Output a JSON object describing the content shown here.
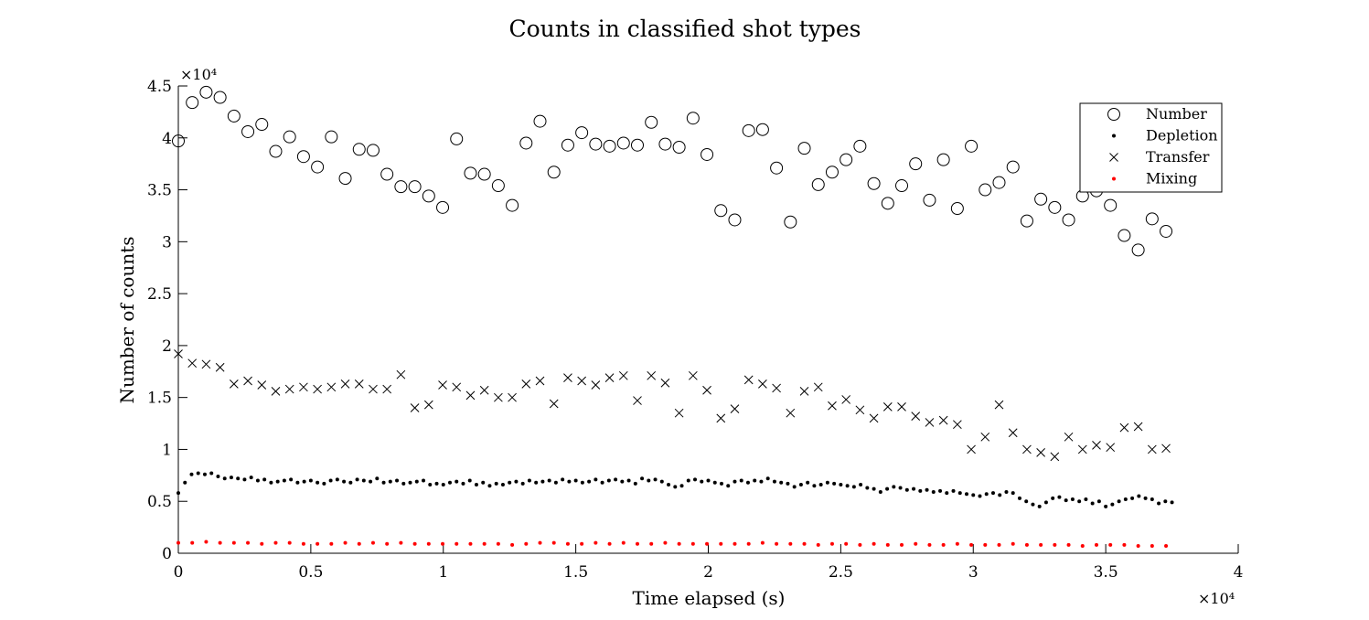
{
  "chart_data": {
    "type": "scatter",
    "title": "Counts in classified shot types",
    "xlabel": "Time elapsed (s)",
    "ylabel": "Number of counts",
    "x_multiplier_label": "×10⁴",
    "y_multiplier_label": "×10⁴",
    "xlim": [
      0,
      40000
    ],
    "ylim": [
      0,
      45000
    ],
    "x_ticks": [
      0,
      5000,
      10000,
      15000,
      20000,
      25000,
      30000,
      35000,
      40000
    ],
    "x_tick_labels": [
      "0",
      "0.5",
      "1",
      "1.5",
      "2",
      "2.5",
      "3",
      "3.5",
      "4"
    ],
    "y_ticks": [
      0,
      5000,
      10000,
      15000,
      20000,
      25000,
      30000,
      35000,
      40000,
      45000
    ],
    "y_tick_labels": [
      "0",
      "0.5",
      "1",
      "1.5",
      "2",
      "2.5",
      "3",
      "3.5",
      "4",
      "4.5"
    ],
    "grid": false,
    "legend_position": "top-right",
    "series": [
      {
        "name": "Number",
        "marker": "open-circle",
        "color": "#000000",
        "x": [
          0,
          525,
          1050,
          1575,
          2100,
          2625,
          3150,
          3675,
          4200,
          4725,
          5250,
          5775,
          6300,
          6825,
          7350,
          7875,
          8400,
          8925,
          9450,
          9975,
          10500,
          11025,
          11550,
          12075,
          12600,
          13125,
          13650,
          14175,
          14700,
          15225,
          15750,
          16275,
          16800,
          17325,
          17850,
          18375,
          18900,
          19425,
          19950,
          20475,
          21000,
          21525,
          22050,
          22575,
          23100,
          23625,
          24150,
          24675,
          25200,
          25725,
          26250,
          26775,
          27300,
          27825,
          28350,
          28875,
          29400,
          29925,
          30450,
          30975,
          31500,
          32025,
          32550,
          33075,
          33600,
          34125,
          34650,
          35175,
          35700,
          36225,
          36750,
          37275
        ],
        "y": [
          39700,
          43400,
          44400,
          43900,
          42100,
          40600,
          41300,
          38700,
          40100,
          38200,
          37200,
          40100,
          36100,
          38900,
          38800,
          36500,
          35300,
          35300,
          34400,
          33300,
          39900,
          36600,
          36500,
          35400,
          33500,
          39500,
          41600,
          36700,
          39300,
          40500,
          39400,
          39200,
          39500,
          39300,
          41500,
          39400,
          39100,
          41900,
          38400,
          33000,
          32100,
          40700,
          40800,
          37100,
          31900,
          39000,
          35500,
          36700,
          37900,
          39200,
          35600,
          33700,
          35400,
          37500,
          34000,
          37900,
          33200,
          39200,
          35000,
          35700,
          37200,
          32000,
          34100,
          33300,
          32100,
          34400,
          34900,
          33500,
          30600,
          29200,
          32200,
          31000
        ]
      },
      {
        "name": "Depletion",
        "marker": "dot",
        "color": "#000000",
        "x": [
          0,
          250,
          500,
          750,
          1000,
          1250,
          1500,
          1750,
          2000,
          2250,
          2500,
          2750,
          3000,
          3250,
          3500,
          3750,
          4000,
          4250,
          4500,
          4750,
          5000,
          5250,
          5500,
          5750,
          6000,
          6250,
          6500,
          6750,
          7000,
          7250,
          7500,
          7750,
          8000,
          8250,
          8500,
          8750,
          9000,
          9250,
          9500,
          9750,
          10000,
          10250,
          10500,
          10750,
          11000,
          11250,
          11500,
          11750,
          12000,
          12250,
          12500,
          12750,
          13000,
          13250,
          13500,
          13750,
          14000,
          14250,
          14500,
          14750,
          15000,
          15250,
          15500,
          15750,
          16000,
          16250,
          16500,
          16750,
          17000,
          17250,
          17500,
          17750,
          18000,
          18250,
          18500,
          18750,
          19000,
          19250,
          19500,
          19750,
          20000,
          20250,
          20500,
          20750,
          21000,
          21250,
          21500,
          21750,
          22000,
          22250,
          22500,
          22750,
          23000,
          23250,
          23500,
          23750,
          24000,
          24250,
          24500,
          24750,
          25000,
          25250,
          25500,
          25750,
          26000,
          26250,
          26500,
          26750,
          27000,
          27250,
          27500,
          27750,
          28000,
          28250,
          28500,
          28750,
          29000,
          29250,
          29500,
          29750,
          30000,
          30250,
          30500,
          30750,
          31000,
          31250,
          31500,
          31750,
          32000,
          32250,
          32500,
          32750,
          33000,
          33250,
          33500,
          33750,
          34000,
          34250,
          34500,
          34750,
          35000,
          35250,
          35500,
          35750,
          36000,
          36250,
          36500,
          36750,
          37000,
          37250,
          37500
        ],
        "y": [
          5800,
          6800,
          7600,
          7700,
          7600,
          7700,
          7400,
          7200,
          7300,
          7200,
          7100,
          7300,
          7000,
          7100,
          6800,
          6900,
          7000,
          7100,
          6800,
          6900,
          7000,
          6800,
          6700,
          7000,
          7100,
          6900,
          6800,
          7100,
          7000,
          6900,
          7200,
          6800,
          6900,
          7000,
          6700,
          6800,
          6900,
          7000,
          6600,
          6700,
          6600,
          6800,
          6900,
          6700,
          7000,
          6600,
          6800,
          6500,
          6700,
          6600,
          6800,
          6900,
          6700,
          7000,
          6800,
          6900,
          7000,
          6800,
          7100,
          6900,
          7000,
          6800,
          6900,
          7100,
          6800,
          7000,
          7100,
          6900,
          7000,
          6700,
          7200,
          7000,
          7100,
          6900,
          6600,
          6400,
          6500,
          7000,
          7100,
          6900,
          7000,
          6800,
          6700,
          6500,
          6900,
          7000,
          6800,
          7000,
          6900,
          7200,
          6900,
          6800,
          6700,
          6400,
          6600,
          6800,
          6500,
          6600,
          6800,
          6700,
          6600,
          6500,
          6400,
          6600,
          6300,
          6200,
          5900,
          6200,
          6400,
          6300,
          6100,
          6200,
          6000,
          6100,
          5900,
          6000,
          5800,
          6000,
          5800,
          5700,
          5600,
          5500,
          5700,
          5800,
          5600,
          5900,
          5800,
          5300,
          5000,
          4700,
          4500,
          4900,
          5300,
          5400,
          5100,
          5200,
          5000,
          5200,
          4800,
          5000,
          4500,
          4700,
          5000,
          5200,
          5300,
          5500,
          5300,
          5200,
          4800,
          5000,
          4900
        ]
      },
      {
        "name": "Transfer",
        "marker": "x",
        "color": "#000000",
        "x": [
          0,
          525,
          1050,
          1575,
          2100,
          2625,
          3150,
          3675,
          4200,
          4725,
          5250,
          5775,
          6300,
          6825,
          7350,
          7875,
          8400,
          8925,
          9450,
          9975,
          10500,
          11025,
          11550,
          12075,
          12600,
          13125,
          13650,
          14175,
          14700,
          15225,
          15750,
          16275,
          16800,
          17325,
          17850,
          18375,
          18900,
          19425,
          19950,
          20475,
          21000,
          21525,
          22050,
          22575,
          23100,
          23625,
          24150,
          24675,
          25200,
          25725,
          26250,
          26775,
          27300,
          27825,
          28350,
          28875,
          29400,
          29925,
          30450,
          30975,
          31500,
          32025,
          32550,
          33075,
          33600,
          34125,
          34650,
          35175,
          35700,
          36225,
          36750,
          37275
        ],
        "y": [
          19200,
          18300,
          18200,
          17900,
          16300,
          16600,
          16200,
          15600,
          15800,
          16000,
          15800,
          16000,
          16300,
          16300,
          15800,
          15800,
          17200,
          14000,
          14300,
          16200,
          16000,
          15200,
          15700,
          15000,
          15000,
          16300,
          16600,
          14400,
          16900,
          16600,
          16200,
          16900,
          17100,
          14700,
          17100,
          16400,
          13500,
          17100,
          15700,
          13000,
          13900,
          16700,
          16300,
          15900,
          13500,
          15600,
          16000,
          14200,
          14800,
          13800,
          13000,
          14100,
          14100,
          13200,
          12600,
          12800,
          12400,
          10000,
          11200,
          14300,
          11600,
          10000,
          9700,
          9300,
          11200,
          10000,
          10400,
          10200,
          12100,
          12200,
          10000,
          10100
        ]
      },
      {
        "name": "Mixing",
        "marker": "dot",
        "color": "#ff0000",
        "x": [
          0,
          525,
          1050,
          1575,
          2100,
          2625,
          3150,
          3675,
          4200,
          4725,
          5250,
          5775,
          6300,
          6825,
          7350,
          7875,
          8400,
          8925,
          9450,
          9975,
          10500,
          11025,
          11550,
          12075,
          12600,
          13125,
          13650,
          14175,
          14700,
          15225,
          15750,
          16275,
          16800,
          17325,
          17850,
          18375,
          18900,
          19425,
          19950,
          20475,
          21000,
          21525,
          22050,
          22575,
          23100,
          23625,
          24150,
          24675,
          25200,
          25725,
          26250,
          26775,
          27300,
          27825,
          28350,
          28875,
          29400,
          29925,
          30450,
          30975,
          31500,
          32025,
          32550,
          33075,
          33600,
          34125,
          34650,
          35175,
          35700,
          36225,
          36750,
          37275
        ],
        "y": [
          1000,
          1000,
          1100,
          1000,
          1000,
          1000,
          900,
          1000,
          1000,
          900,
          900,
          900,
          1000,
          900,
          1000,
          900,
          1000,
          900,
          900,
          900,
          900,
          900,
          900,
          900,
          800,
          900,
          1000,
          1000,
          900,
          900,
          1000,
          900,
          1000,
          900,
          900,
          1000,
          900,
          900,
          900,
          900,
          900,
          900,
          1000,
          900,
          900,
          900,
          800,
          900,
          900,
          800,
          900,
          800,
          800,
          900,
          800,
          800,
          900,
          800,
          800,
          800,
          900,
          800,
          800,
          800,
          800,
          700,
          800,
          800,
          800,
          700,
          700,
          700
        ]
      }
    ]
  }
}
